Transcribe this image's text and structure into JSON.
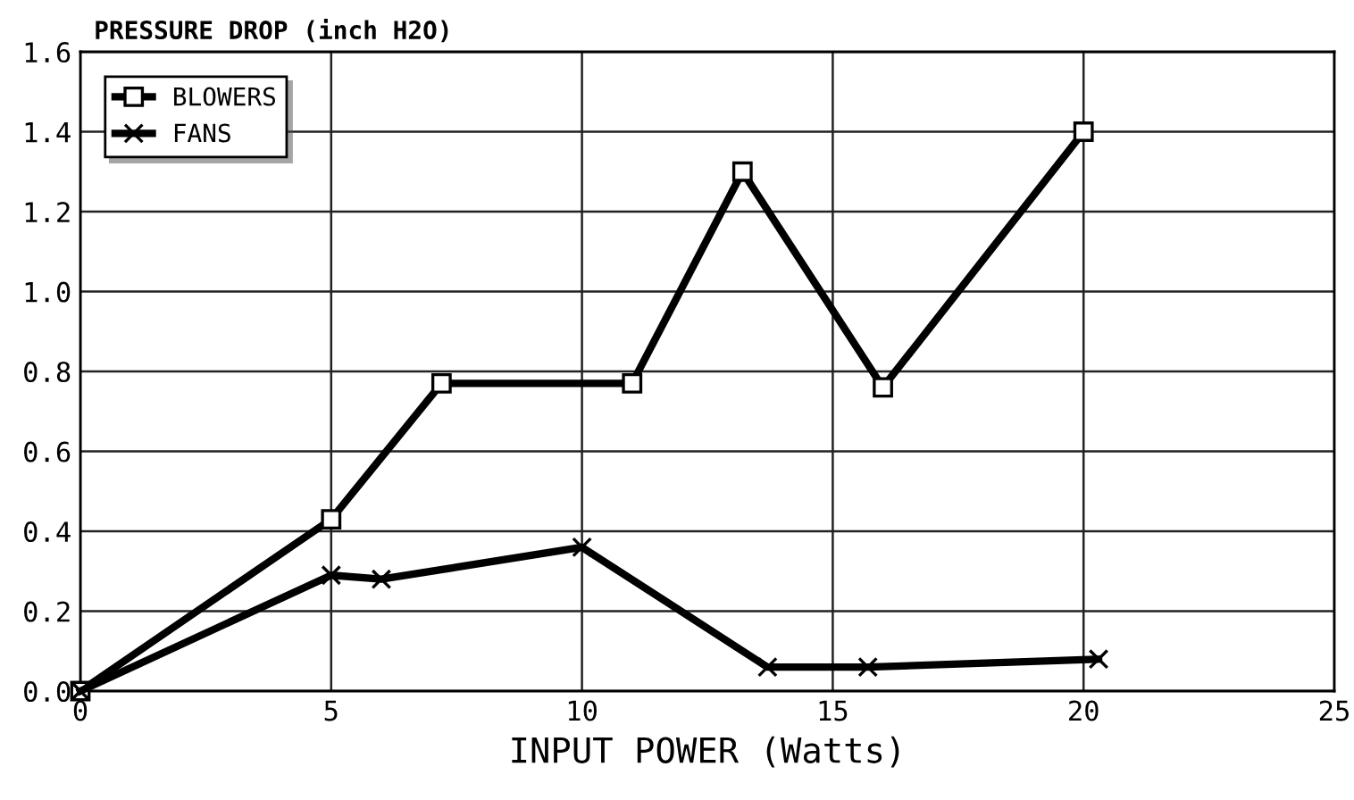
{
  "chart_data": {
    "type": "line",
    "title": "PRESSURE DROP (inch H2O)",
    "xlabel": "INPUT POWER (Watts)",
    "series": [
      {
        "name": "BLOWERS",
        "color": "#000000",
        "marker": "square",
        "x": [
          0,
          5,
          7.2,
          11,
          13.2,
          16,
          20
        ],
        "values": [
          0,
          0.43,
          0.77,
          0.77,
          1.3,
          0.76,
          1.4
        ]
      },
      {
        "name": "FANS",
        "color": "#000000",
        "marker": "cross",
        "x": [
          0,
          5,
          6,
          10,
          13.7,
          15.7,
          20.3
        ],
        "values": [
          0,
          0.29,
          0.28,
          0.36,
          0.06,
          0.06,
          0.08
        ]
      }
    ],
    "xlim": [
      0,
      25
    ],
    "xticks": [
      0,
      5,
      10,
      15,
      20,
      25
    ],
    "ylim": [
      0,
      1.6
    ],
    "yticks": [
      {
        "value": 0,
        "label": "0.0"
      },
      0.2,
      0.4,
      0.6,
      0.8,
      {
        "value": 1.0,
        "label": "1.0"
      },
      1.2,
      1.4,
      1.6
    ],
    "grid": true,
    "legend": "top left",
    "line_style": "solid"
  }
}
